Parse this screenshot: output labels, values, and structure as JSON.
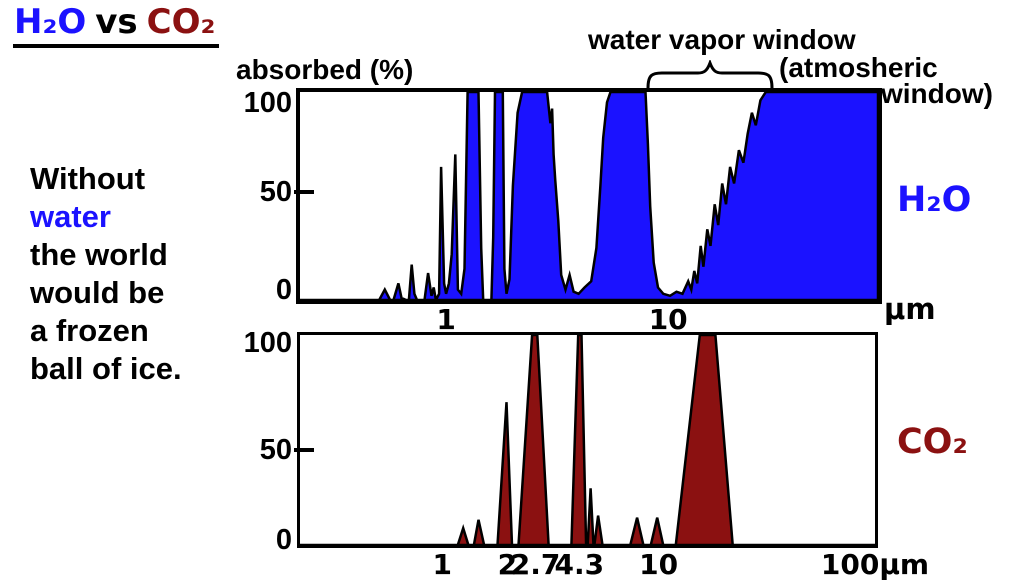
{
  "title": {
    "h2o": "H₂O",
    "vs": "vs",
    "co2": "CO₂"
  },
  "note": {
    "lines": [
      {
        "text": "Without",
        "color": "#000000"
      },
      {
        "text": "water",
        "color": "#1b12ff"
      },
      {
        "text": "the world",
        "color": "#000000"
      },
      {
        "text": "would be",
        "color": "#000000"
      },
      {
        "text": "a frozen",
        "color": "#000000"
      },
      {
        "text": "ball of ice.",
        "color": "#000000"
      }
    ]
  },
  "annotations": {
    "water_vapor_window": "water vapor window",
    "atmospheric_line1": "(atmosheric",
    "atmospheric_line2": "window)"
  },
  "colors": {
    "h2o_fill": "#1b12ff",
    "co2_fill": "#8b1111",
    "outline": "#000000"
  },
  "chart_data": [
    {
      "id": "h2o",
      "type": "area",
      "ylabel": "absorbed (%)",
      "series_label": "H₂O",
      "x_unit": "μm",
      "x_scale": "log",
      "x_range": [
        0.22,
        88
      ],
      "y_range": [
        0,
        100
      ],
      "fill": "#1b12ff",
      "x_ticks": [
        {
          "value": 1,
          "label": "1"
        },
        {
          "value": 10,
          "label": "10"
        }
      ],
      "y_ticks": [
        {
          "value": 100,
          "label": "100"
        },
        {
          "value": 50,
          "label": "50"
        },
        {
          "value": 0,
          "label": "0"
        }
      ],
      "points": [
        [
          0.22,
          0
        ],
        [
          0.5,
          0
        ],
        [
          0.53,
          5
        ],
        [
          0.56,
          0
        ],
        [
          0.58,
          0
        ],
        [
          0.61,
          8
        ],
        [
          0.63,
          1
        ],
        [
          0.66,
          0
        ],
        [
          0.68,
          0
        ],
        [
          0.7,
          17
        ],
        [
          0.72,
          3
        ],
        [
          0.74,
          0
        ],
        [
          0.8,
          0
        ],
        [
          0.83,
          13
        ],
        [
          0.86,
          2
        ],
        [
          0.88,
          6
        ],
        [
          0.9,
          0
        ],
        [
          0.93,
          3
        ],
        [
          0.95,
          64
        ],
        [
          0.98,
          8
        ],
        [
          1.0,
          3
        ],
        [
          1.03,
          8
        ],
        [
          1.06,
          22
        ],
        [
          1.1,
          70
        ],
        [
          1.13,
          5
        ],
        [
          1.17,
          3
        ],
        [
          1.21,
          15
        ],
        [
          1.25,
          100
        ],
        [
          1.4,
          100
        ],
        [
          1.44,
          25
        ],
        [
          1.47,
          0
        ],
        [
          1.6,
          0
        ],
        [
          1.63,
          30
        ],
        [
          1.66,
          100
        ],
        [
          1.8,
          100
        ],
        [
          1.83,
          15
        ],
        [
          1.87,
          3
        ],
        [
          1.93,
          10
        ],
        [
          2.0,
          55
        ],
        [
          2.1,
          90
        ],
        [
          2.2,
          100
        ],
        [
          2.85,
          100
        ],
        [
          2.95,
          85
        ],
        [
          3.0,
          92
        ],
        [
          3.05,
          70
        ],
        [
          3.1,
          58
        ],
        [
          3.2,
          38
        ],
        [
          3.3,
          12
        ],
        [
          3.45,
          5
        ],
        [
          3.6,
          12
        ],
        [
          3.75,
          4
        ],
        [
          3.95,
          3
        ],
        [
          4.2,
          6
        ],
        [
          4.5,
          9
        ],
        [
          4.75,
          25
        ],
        [
          4.95,
          55
        ],
        [
          5.1,
          78
        ],
        [
          5.3,
          95
        ],
        [
          5.5,
          100
        ],
        [
          7.9,
          100
        ],
        [
          8.1,
          75
        ],
        [
          8.3,
          45
        ],
        [
          8.6,
          18
        ],
        [
          9.0,
          6
        ],
        [
          9.5,
          3
        ],
        [
          10.2,
          2
        ],
        [
          10.9,
          4
        ],
        [
          11.6,
          3
        ],
        [
          12.3,
          9
        ],
        [
          12.7,
          5
        ],
        [
          13.1,
          14
        ],
        [
          13.5,
          8
        ],
        [
          14.0,
          26
        ],
        [
          14.4,
          16
        ],
        [
          15.0,
          34
        ],
        [
          15.5,
          26
        ],
        [
          16.2,
          46
        ],
        [
          16.8,
          36
        ],
        [
          17.5,
          56
        ],
        [
          18.2,
          46
        ],
        [
          19.0,
          64
        ],
        [
          19.8,
          56
        ],
        [
          20.8,
          72
        ],
        [
          21.8,
          66
        ],
        [
          22.8,
          80
        ],
        [
          23.8,
          90
        ],
        [
          24.8,
          84
        ],
        [
          26.0,
          96
        ],
        [
          27.5,
          100
        ],
        [
          88,
          100
        ]
      ]
    },
    {
      "id": "co2",
      "type": "area",
      "ylabel": "absorbed (%)",
      "series_label": "CO₂",
      "x_unit": "μm",
      "x_scale": "log",
      "x_range": [
        0.22,
        100
      ],
      "y_range": [
        0,
        100
      ],
      "fill": "#8b1111",
      "x_ticks": [
        {
          "value": 1,
          "label": "1"
        },
        {
          "value": 2,
          "label": "2"
        },
        {
          "value": 2.7,
          "label": "2.7"
        },
        {
          "value": 4.3,
          "label": "4.3"
        },
        {
          "value": 10,
          "label": "10"
        },
        {
          "value": 100,
          "label": "100μm"
        }
      ],
      "y_ticks": [
        {
          "value": 100,
          "label": "100"
        },
        {
          "value": 50,
          "label": "50"
        },
        {
          "value": 0,
          "label": "0"
        }
      ],
      "points": [
        [
          0.22,
          0
        ],
        [
          1.18,
          0
        ],
        [
          1.25,
          8
        ],
        [
          1.32,
          0
        ],
        [
          1.4,
          0
        ],
        [
          1.47,
          12
        ],
        [
          1.56,
          0
        ],
        [
          1.8,
          0
        ],
        [
          1.98,
          68
        ],
        [
          2.1,
          0
        ],
        [
          2.25,
          0
        ],
        [
          2.6,
          100
        ],
        [
          2.75,
          100
        ],
        [
          3.1,
          0
        ],
        [
          3.95,
          0
        ],
        [
          4.25,
          100
        ],
        [
          4.4,
          100
        ],
        [
          4.62,
          0
        ],
        [
          4.7,
          0
        ],
        [
          4.85,
          27
        ],
        [
          5.0,
          0
        ],
        [
          5.05,
          0
        ],
        [
          5.25,
          14
        ],
        [
          5.5,
          0
        ],
        [
          7.4,
          0
        ],
        [
          7.95,
          13
        ],
        [
          8.5,
          0
        ],
        [
          9.2,
          0
        ],
        [
          9.85,
          13
        ],
        [
          10.5,
          0
        ],
        [
          12.0,
          0
        ],
        [
          15.5,
          100
        ],
        [
          18.3,
          100
        ],
        [
          22.0,
          0
        ],
        [
          100,
          0
        ]
      ]
    }
  ]
}
